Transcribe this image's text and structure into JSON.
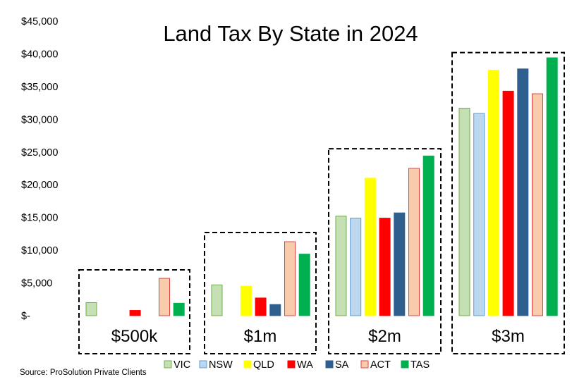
{
  "chart_data": {
    "type": "bar",
    "title": "Land Tax By State in 2024",
    "source": "Source: ProSolution Private Clients",
    "categories": [
      "$500k",
      "$1m",
      "$2m",
      "$3m"
    ],
    "yticks": [
      "$-",
      "$5,000",
      "$10,000",
      "$15,000",
      "$20,000",
      "$25,000",
      "$30,000",
      "$35,000",
      "$40,000",
      "$45,000"
    ],
    "ylim": [
      0,
      45000
    ],
    "grid": false,
    "legend_position": "bottom",
    "series": [
      {
        "name": "VIC",
        "fill": "#c5e0b4",
        "stroke": "#70ad47",
        "values": [
          2000,
          4700,
          15200,
          31700
        ]
      },
      {
        "name": "NSW",
        "fill": "#bdd7ee",
        "stroke": "#5b9bd5",
        "values": [
          0,
          0,
          14900,
          30900
        ]
      },
      {
        "name": "QLD",
        "fill": "#ffff00",
        "stroke": "#ffff00",
        "values": [
          0,
          4500,
          21000,
          37500
        ]
      },
      {
        "name": "WA",
        "fill": "#ff0000",
        "stroke": "#ff0000",
        "values": [
          800,
          2700,
          14900,
          34300
        ]
      },
      {
        "name": "SA",
        "fill": "#2e5f8e",
        "stroke": "#2e5f8e",
        "values": [
          0,
          1700,
          15700,
          37700
        ]
      },
      {
        "name": "ACT",
        "fill": "#f8cbad",
        "stroke": "#e04040",
        "values": [
          5700,
          11300,
          22500,
          33900
        ]
      },
      {
        "name": "TAS",
        "fill": "#00b050",
        "stroke": "#00b050",
        "values": [
          1900,
          9400,
          24400,
          39400
        ]
      }
    ]
  }
}
